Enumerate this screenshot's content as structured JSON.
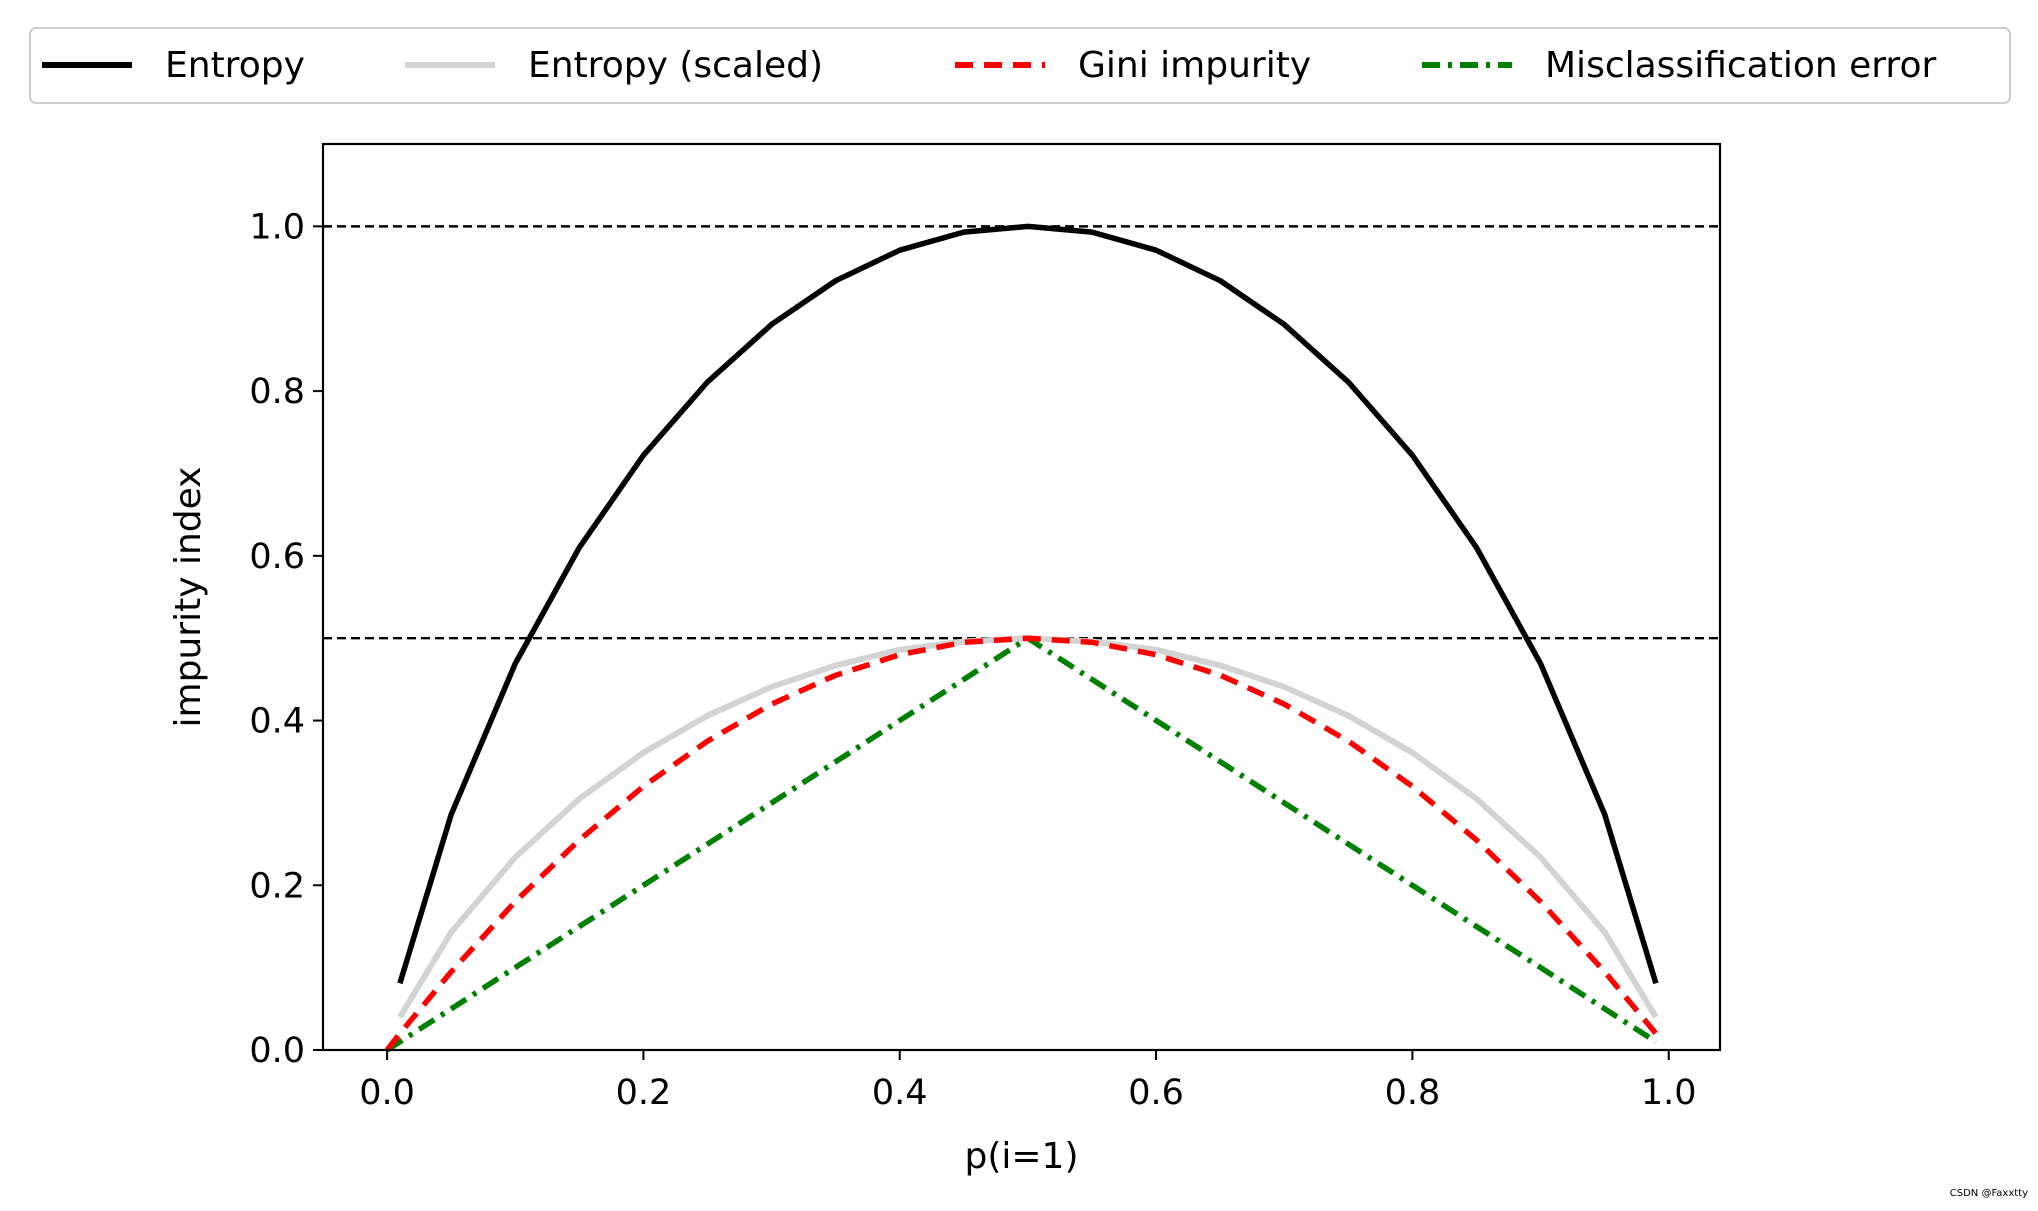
{
  "chart_data": {
    "type": "line",
    "xlabel": "p(i=1)",
    "ylabel": "impurity index",
    "xlim": [
      -0.05,
      1.04
    ],
    "ylim": [
      0.0,
      1.1
    ],
    "xticks": [
      0.0,
      0.2,
      0.4,
      0.6,
      0.8,
      1.0
    ],
    "xtick_labels": [
      "0.0",
      "0.2",
      "0.4",
      "0.6",
      "0.8",
      "1.0"
    ],
    "yticks": [
      0.0,
      0.2,
      0.4,
      0.6,
      0.8,
      1.0
    ],
    "ytick_labels": [
      "0.0",
      "0.2",
      "0.4",
      "0.6",
      "0.8",
      "1.0"
    ],
    "grid": false,
    "legend_position": "top, above plot, 4 columns",
    "reference_lines": [
      {
        "y": 0.5,
        "style": "dashed",
        "color": "#000000"
      },
      {
        "y": 1.0,
        "style": "dashed",
        "color": "#000000"
      }
    ],
    "x": [
      0.0,
      0.01,
      0.05,
      0.1,
      0.15,
      0.2,
      0.25,
      0.3,
      0.35,
      0.4,
      0.45,
      0.5,
      0.55,
      0.6,
      0.65,
      0.7,
      0.75,
      0.8,
      0.85,
      0.9,
      0.95,
      0.99
    ],
    "series": [
      {
        "name": "Entropy",
        "color": "#000000",
        "dash": "solid",
        "values": [
          null,
          0.081,
          0.286,
          0.469,
          0.61,
          0.722,
          0.811,
          0.881,
          0.934,
          0.971,
          0.993,
          1.0,
          0.993,
          0.971,
          0.934,
          0.881,
          0.811,
          0.722,
          0.61,
          0.469,
          0.286,
          0.081
        ]
      },
      {
        "name": "Entropy (scaled)",
        "color": "#d3d3d3",
        "dash": "solid",
        "values": [
          null,
          0.04,
          0.143,
          0.234,
          0.305,
          0.361,
          0.406,
          0.441,
          0.467,
          0.486,
          0.496,
          0.5,
          0.496,
          0.486,
          0.467,
          0.441,
          0.406,
          0.361,
          0.305,
          0.234,
          0.143,
          0.04
        ]
      },
      {
        "name": "Gini impurity",
        "color": "#ff0000",
        "dash": "dashed",
        "values": [
          0.0,
          0.02,
          0.095,
          0.18,
          0.255,
          0.32,
          0.375,
          0.42,
          0.455,
          0.48,
          0.495,
          0.5,
          0.495,
          0.48,
          0.455,
          0.42,
          0.375,
          0.32,
          0.255,
          0.18,
          0.095,
          0.02
        ]
      },
      {
        "name": "Misclassification error",
        "color": "#008000",
        "dash": "dashdot",
        "values": [
          0.0,
          0.01,
          0.05,
          0.1,
          0.15,
          0.2,
          0.25,
          0.3,
          0.35,
          0.4,
          0.45,
          0.5,
          0.45,
          0.4,
          0.35,
          0.3,
          0.25,
          0.2,
          0.15,
          0.1,
          0.05,
          0.01
        ]
      }
    ]
  },
  "watermark": "CSDN @Faxxtty"
}
